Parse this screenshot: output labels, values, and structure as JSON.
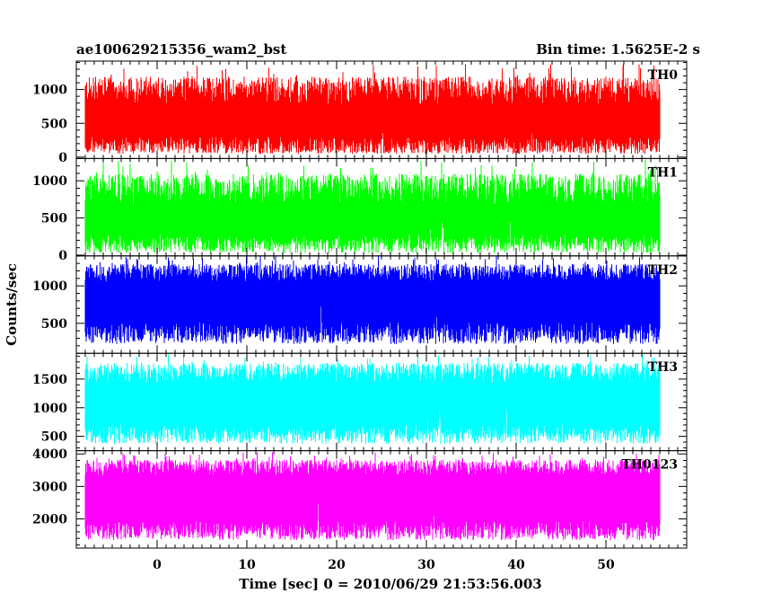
{
  "chart_data": {
    "type": "line",
    "title": "ae100629215356_wam2_bst",
    "subtitle": "Bin time: 1.5625E-2 s",
    "xlabel": "Time [sec] 0 = 2010/06/29 21:53:56.003",
    "ylabel": "Counts/sec",
    "xlim": [
      -9,
      59
    ],
    "x_ticks": [
      0,
      10,
      20,
      30,
      40,
      50
    ],
    "x_data_range": [
      -8,
      56
    ],
    "grid": false,
    "panels": [
      {
        "name": "TH0",
        "color": "#ff0000",
        "ylim": [
          -20,
          1420
        ],
        "y_ticks": [
          0,
          500,
          1000
        ],
        "baseline": 300,
        "band_low": 70,
        "band_high": 920,
        "spike_high": 1380
      },
      {
        "name": "TH1",
        "color": "#00ff00",
        "ylim": [
          -10,
          1300
        ],
        "y_ticks": [
          0,
          500,
          1000
        ],
        "baseline": 280,
        "band_low": 50,
        "band_high": 820,
        "spike_high": 1290
      },
      {
        "name": "TH2",
        "color": "#0000ff",
        "ylim": [
          100,
          1400
        ],
        "y_ticks": [
          500,
          1000
        ],
        "baseline": 520,
        "band_low": 250,
        "band_high": 1140,
        "spike_high": 1400
      },
      {
        "name": "TH3",
        "color": "#00ffff",
        "ylim": [
          250,
          1950
        ],
        "y_ticks": [
          500,
          1000,
          1500
        ],
        "baseline": 700,
        "band_low": 400,
        "band_high": 1550,
        "spike_high": 1950
      },
      {
        "name": "TH0123",
        "color": "#ff00ff",
        "ylim": [
          1100,
          4100
        ],
        "y_ticks": [
          2000,
          3000,
          4000
        ],
        "baseline": 1950,
        "band_low": 1400,
        "band_high": 3500,
        "spike_high": 4050
      }
    ]
  }
}
